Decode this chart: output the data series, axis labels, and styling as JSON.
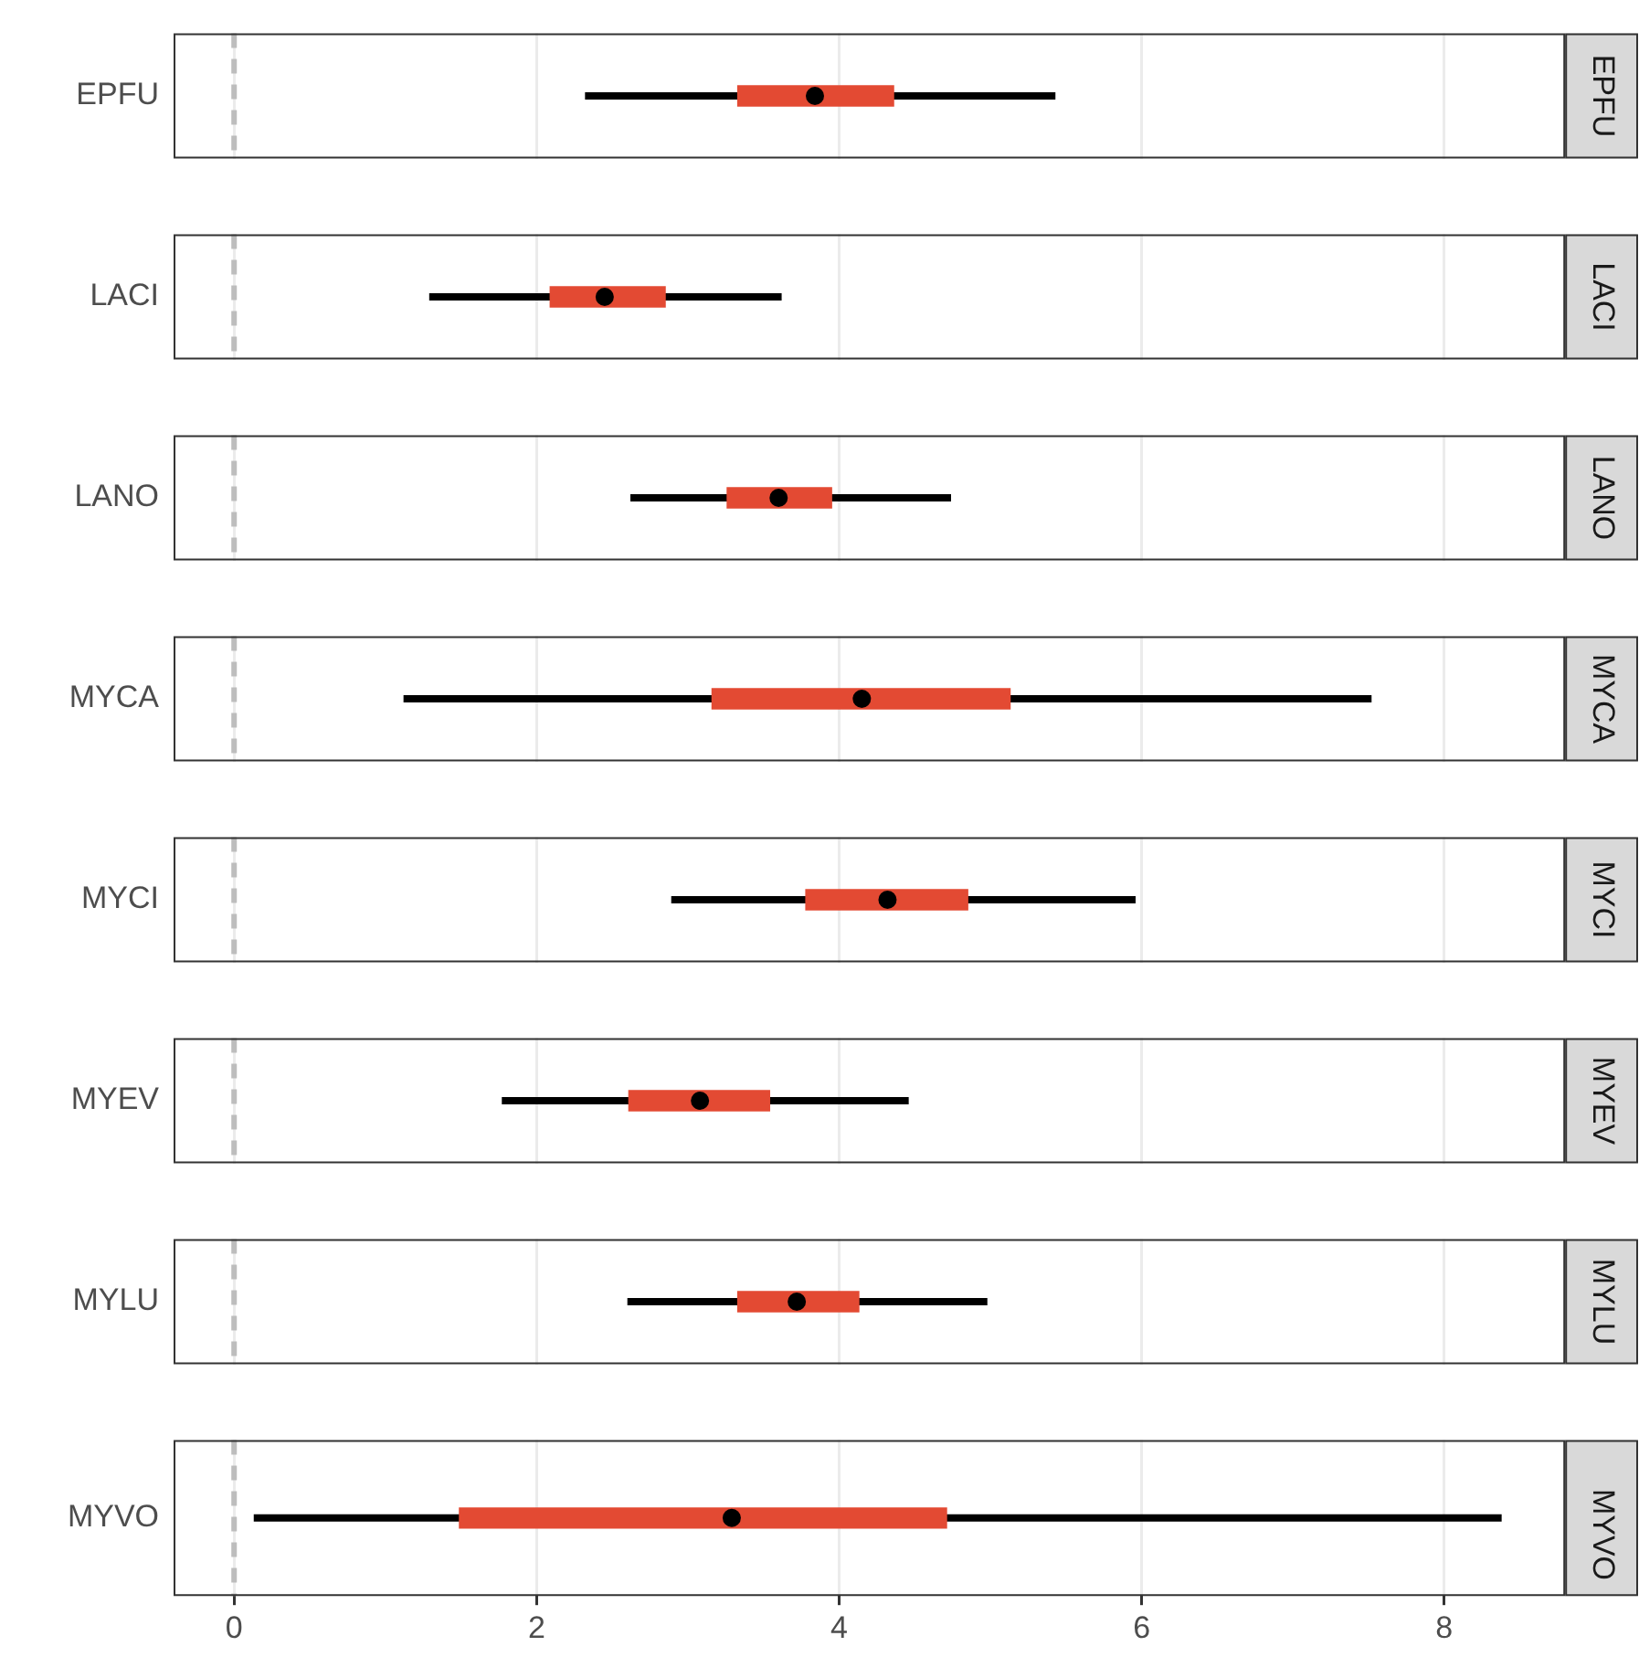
{
  "chart_data": [
    {
      "type": "box",
      "orientation": "horizontal",
      "annotations": [
        "EPFU"
      ],
      "categories": [
        "EPFU"
      ],
      "color": "#e34a33",
      "boxes": [
        {
          "low": 2.32,
          "q1": 3.33,
          "median": 3.84,
          "q3": 4.36,
          "high": 5.43
        }
      ],
      "xlim": [
        -0.4,
        8.8
      ],
      "xticks": [
        0,
        2,
        4,
        6,
        8
      ],
      "grid": "x",
      "tick_labels": "y",
      "ref_lines": [
        {
          "axis": "x",
          "value": 0,
          "color": "#bdbdbd",
          "line_style": "dashed"
        }
      ]
    },
    {
      "type": "box",
      "orientation": "horizontal",
      "annotations": [
        "LACI"
      ],
      "categories": [
        "LACI"
      ],
      "color": "#e34a33",
      "boxes": [
        {
          "low": 1.29,
          "q1": 2.09,
          "median": 2.45,
          "q3": 2.85,
          "high": 3.62
        }
      ],
      "xlim": [
        -0.4,
        8.8
      ],
      "xticks": [
        0,
        2,
        4,
        6,
        8
      ],
      "grid": "x",
      "tick_labels": "y",
      "ref_lines": [
        {
          "axis": "x",
          "value": 0,
          "color": "#bdbdbd",
          "line_style": "dashed"
        }
      ]
    },
    {
      "type": "box",
      "orientation": "horizontal",
      "annotations": [
        "LANO"
      ],
      "categories": [
        "LANO"
      ],
      "color": "#e34a33",
      "boxes": [
        {
          "low": 2.62,
          "q1": 3.26,
          "median": 3.6,
          "q3": 3.95,
          "high": 4.74
        }
      ],
      "xlim": [
        -0.4,
        8.8
      ],
      "xticks": [
        0,
        2,
        4,
        6,
        8
      ],
      "grid": "x",
      "tick_labels": "y",
      "ref_lines": [
        {
          "axis": "x",
          "value": 0,
          "color": "#bdbdbd",
          "line_style": "dashed"
        }
      ]
    },
    {
      "type": "box",
      "orientation": "horizontal",
      "annotations": [
        "MYCA"
      ],
      "categories": [
        "MYCA"
      ],
      "color": "#e34a33",
      "boxes": [
        {
          "low": 1.12,
          "q1": 3.16,
          "median": 4.15,
          "q3": 5.13,
          "high": 7.52
        }
      ],
      "xlim": [
        -0.4,
        8.8
      ],
      "xticks": [
        0,
        2,
        4,
        6,
        8
      ],
      "grid": "x",
      "tick_labels": "y",
      "ref_lines": [
        {
          "axis": "x",
          "value": 0,
          "color": "#bdbdbd",
          "line_style": "dashed"
        }
      ]
    },
    {
      "type": "box",
      "orientation": "horizontal",
      "annotations": [
        "MYCI"
      ],
      "categories": [
        "MYCI"
      ],
      "color": "#e34a33",
      "boxes": [
        {
          "low": 2.89,
          "q1": 3.78,
          "median": 4.32,
          "q3": 4.85,
          "high": 5.96
        }
      ],
      "xlim": [
        -0.4,
        8.8
      ],
      "xticks": [
        0,
        2,
        4,
        6,
        8
      ],
      "grid": "x",
      "tick_labels": "y",
      "ref_lines": [
        {
          "axis": "x",
          "value": 0,
          "color": "#bdbdbd",
          "line_style": "dashed"
        }
      ]
    },
    {
      "type": "box",
      "orientation": "horizontal",
      "annotations": [
        "MYEV"
      ],
      "categories": [
        "MYEV"
      ],
      "color": "#e34a33",
      "boxes": [
        {
          "low": 1.77,
          "q1": 2.61,
          "median": 3.08,
          "q3": 3.54,
          "high": 4.46
        }
      ],
      "xlim": [
        -0.4,
        8.8
      ],
      "xticks": [
        0,
        2,
        4,
        6,
        8
      ],
      "grid": "x",
      "tick_labels": "y",
      "ref_lines": [
        {
          "axis": "x",
          "value": 0,
          "color": "#bdbdbd",
          "line_style": "dashed"
        }
      ]
    },
    {
      "type": "box",
      "orientation": "horizontal",
      "annotations": [
        "MYLU"
      ],
      "categories": [
        "MYLU"
      ],
      "color": "#e34a33",
      "boxes": [
        {
          "low": 2.6,
          "q1": 3.33,
          "median": 3.72,
          "q3": 4.13,
          "high": 4.98
        }
      ],
      "xlim": [
        -0.4,
        8.8
      ],
      "xticks": [
        0,
        2,
        4,
        6,
        8
      ],
      "grid": "x",
      "tick_labels": "y",
      "ref_lines": [
        {
          "axis": "x",
          "value": 0,
          "color": "#bdbdbd",
          "line_style": "dashed"
        }
      ]
    },
    {
      "type": "box",
      "orientation": "horizontal",
      "annotations": [
        "MYVO"
      ],
      "categories": [
        "MYVO"
      ],
      "color": "#e34a33",
      "boxes": [
        {
          "low": 0.13,
          "q1": 1.49,
          "median": 3.29,
          "q3": 4.71,
          "high": 8.38
        }
      ],
      "xlim": [
        -0.4,
        8.8
      ],
      "xticks": [
        0,
        2,
        4,
        6,
        8
      ],
      "grid": "x",
      "ref_lines": [
        {
          "axis": "x",
          "value": 0,
          "color": "#bdbdbd",
          "line_style": "dashed"
        }
      ]
    }
  ]
}
